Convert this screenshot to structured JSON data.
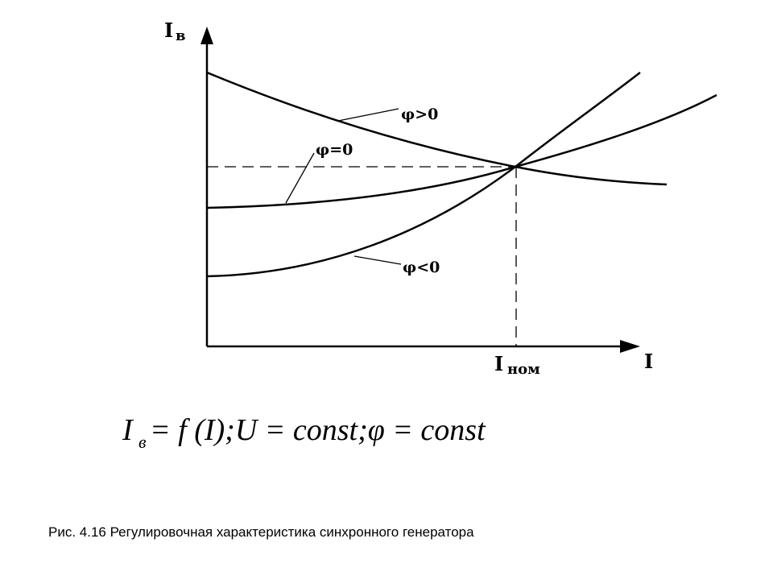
{
  "axes": {
    "y_label": {
      "main": "I",
      "sub": "в"
    },
    "x_label": "I",
    "x_mark": {
      "main": "I",
      "sub": "ном"
    }
  },
  "curves": [
    {
      "label": "φ>0"
    },
    {
      "label": "φ=0"
    },
    {
      "label": "φ<0"
    }
  ],
  "formula": {
    "main": "I",
    "sub": "в",
    "rest": "= f (I);U = const;φ = const"
  },
  "caption": "Рис. 4.16 Регулировочная характеристика синхронного генератора"
}
